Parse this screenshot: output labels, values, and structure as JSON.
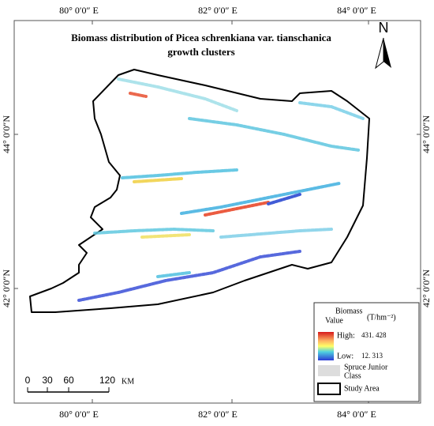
{
  "title": [
    "Biomass distribution of Picea schrenkiana var.  tianschanica",
    "growth clusters"
  ],
  "graticule": {
    "lon_labels": [
      "80° 0′0″ E",
      "82° 0′0″ E",
      "84° 0′0″ E"
    ],
    "lat_labels": [
      "44° 0′0″N",
      "42° 0′0″N"
    ]
  },
  "north_arrow": "N",
  "scale_bar": {
    "ticks": [
      "0",
      "30",
      "60",
      "120"
    ],
    "unit": "KM"
  },
  "legend": {
    "title": [
      "Biomass",
      "Value"
    ],
    "unit": "(T/hm⁻²)",
    "high": "High:",
    "high_value": "431. 428",
    "low": "Low:",
    "low_value": "12. 313",
    "junior": [
      "Spruce Junior",
      "Class"
    ],
    "study_area": "Study Area"
  }
}
